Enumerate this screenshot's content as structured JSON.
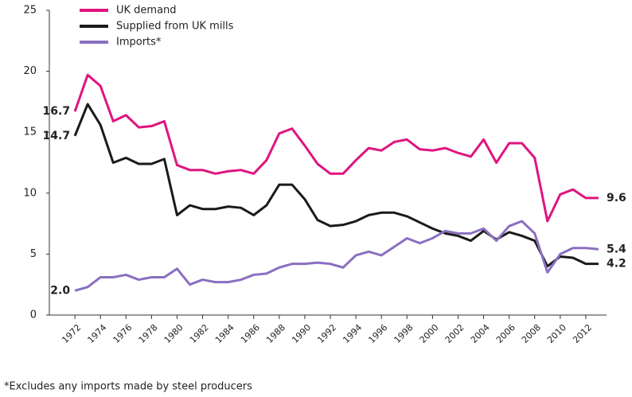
{
  "chart_data": {
    "type": "line",
    "footnote": "*Excludes any imports made by steel producers",
    "x": [
      1972,
      1973,
      1974,
      1975,
      1976,
      1977,
      1978,
      1979,
      1980,
      1981,
      1982,
      1983,
      1984,
      1985,
      1986,
      1987,
      1988,
      1989,
      1990,
      1991,
      1992,
      1993,
      1994,
      1995,
      1996,
      1997,
      1998,
      1999,
      2000,
      2001,
      2002,
      2003,
      2004,
      2005,
      2006,
      2007,
      2008,
      2009,
      2010,
      2011,
      2012,
      2013
    ],
    "xlim": [
      1970,
      2013.5
    ],
    "xticks": [
      1972,
      1974,
      1976,
      1978,
      1980,
      1982,
      1984,
      1986,
      1988,
      1990,
      1992,
      1994,
      1996,
      1998,
      2000,
      2002,
      2004,
      2006,
      2008,
      2010,
      2012
    ],
    "ylim": [
      0,
      25
    ],
    "yticks": [
      0,
      5,
      10,
      15,
      20,
      25
    ],
    "series": [
      {
        "name": "UK demand",
        "color": "#e0147f",
        "values": [
          16.7,
          19.7,
          18.8,
          15.9,
          16.4,
          15.4,
          15.5,
          15.9,
          12.3,
          11.9,
          11.9,
          11.6,
          11.8,
          11.9,
          11.6,
          12.7,
          14.9,
          15.3,
          13.9,
          12.4,
          11.6,
          11.6,
          12.7,
          13.7,
          13.5,
          14.2,
          14.4,
          13.6,
          13.5,
          13.7,
          13.3,
          13.0,
          14.4,
          12.5,
          14.1,
          14.1,
          12.9,
          7.7,
          9.9,
          10.3,
          9.6,
          9.6
        ],
        "value_labels": [
          "16.7",
          null,
          null,
          null,
          null,
          null,
          null,
          null,
          null,
          null,
          null,
          null,
          null,
          null,
          null,
          null,
          null,
          null,
          null,
          null,
          null,
          null,
          null,
          null,
          null,
          null,
          null,
          null,
          null,
          null,
          null,
          null,
          null,
          null,
          null,
          null,
          null,
          null,
          null,
          null,
          null,
          "9.6"
        ]
      },
      {
        "name": "Supplied from UK mills",
        "color": "#1a1a1a",
        "values": [
          14.7,
          17.3,
          15.6,
          12.5,
          12.9,
          12.4,
          12.4,
          12.8,
          8.2,
          9.0,
          8.7,
          8.7,
          8.9,
          8.8,
          8.2,
          9.0,
          10.7,
          10.7,
          9.5,
          7.8,
          7.3,
          7.4,
          7.7,
          8.2,
          8.4,
          8.4,
          8.1,
          7.6,
          7.1,
          6.7,
          6.5,
          6.1,
          6.9,
          6.2,
          6.8,
          6.5,
          6.1,
          4.0,
          4.8,
          4.7,
          4.2,
          4.2
        ],
        "value_labels": [
          "14.7",
          null,
          null,
          null,
          null,
          null,
          null,
          null,
          null,
          null,
          null,
          null,
          null,
          null,
          null,
          null,
          null,
          null,
          null,
          null,
          null,
          null,
          null,
          null,
          null,
          null,
          null,
          null,
          null,
          null,
          null,
          null,
          null,
          null,
          null,
          null,
          null,
          null,
          null,
          null,
          null,
          "4.2"
        ]
      },
      {
        "name": "Imports*",
        "color": "#8b6fc0",
        "values": [
          2.0,
          2.3,
          3.1,
          3.1,
          3.3,
          2.9,
          3.1,
          3.1,
          3.8,
          2.5,
          2.9,
          2.7,
          2.7,
          2.9,
          3.3,
          3.4,
          3.9,
          4.2,
          4.2,
          4.3,
          4.2,
          3.9,
          4.9,
          5.2,
          4.9,
          5.6,
          6.3,
          5.9,
          6.3,
          6.9,
          6.7,
          6.7,
          7.1,
          6.1,
          7.3,
          7.7,
          6.7,
          3.5,
          5.0,
          5.5,
          5.5,
          5.4
        ],
        "value_labels": [
          "2.0",
          null,
          null,
          null,
          null,
          null,
          null,
          null,
          null,
          null,
          null,
          null,
          null,
          null,
          null,
          null,
          null,
          null,
          null,
          null,
          null,
          null,
          null,
          null,
          null,
          null,
          null,
          null,
          null,
          null,
          null,
          null,
          null,
          null,
          null,
          null,
          null,
          null,
          null,
          null,
          null,
          "5.4"
        ]
      }
    ]
  }
}
